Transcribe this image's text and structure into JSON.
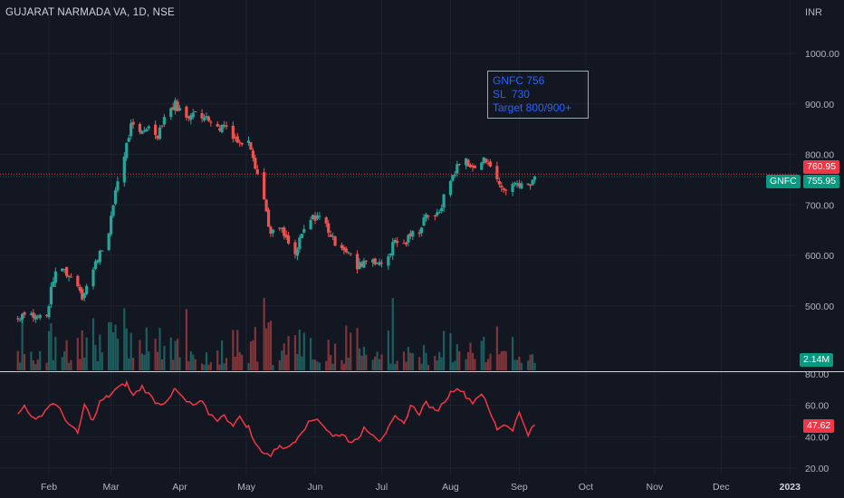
{
  "header": {
    "title": "GUJARAT NARMADA VA, 1D, NSE",
    "currency": "INR"
  },
  "note": {
    "lines": [
      "GNFC 756",
      "SL  730",
      "Target 800/900+"
    ]
  },
  "price_tags": {
    "last": "760.95",
    "current": "755.95",
    "symbol": "GNFC",
    "volume": "2.14M",
    "rsi": "47.62"
  },
  "colors": {
    "up": "#26a69a",
    "down": "#ef5350",
    "rsi": "#f23645",
    "note": "#2962ff",
    "bg": "#131722"
  },
  "chart_data": {
    "type": "candlestick",
    "title": "GUJARAT NARMADA VA, 1D, NSE",
    "price_axis": {
      "ticks": [
        "1000.00",
        "900.00",
        "800.00",
        "700.00",
        "600.00",
        "500.00"
      ],
      "ylim": [
        470,
        1050
      ]
    },
    "rsi_axis": {
      "ticks": [
        "80.00",
        "60.00",
        "40.00",
        "20.00"
      ],
      "ylim": [
        20,
        84
      ]
    },
    "x_ticks": [
      "Feb",
      "Mar",
      "Apr",
      "May",
      "Jun",
      "Jul",
      "Aug",
      "Sep",
      "Oct",
      "Nov",
      "Dec",
      "2023"
    ],
    "price_close_path": [
      [
        "2022-01-18",
        475
      ],
      [
        "2022-01-21",
        490
      ],
      [
        "2022-01-26",
        478
      ],
      [
        "2022-01-31",
        480
      ],
      [
        "2022-02-03",
        555
      ],
      [
        "2022-02-07",
        575
      ],
      [
        "2022-02-10",
        560
      ],
      [
        "2022-02-14",
        545
      ],
      [
        "2022-02-16",
        520
      ],
      [
        "2022-02-21",
        570
      ],
      [
        "2022-02-24",
        610
      ],
      [
        "2022-02-28",
        640
      ],
      [
        "2022-03-03",
        730
      ],
      [
        "2022-03-07",
        800
      ],
      [
        "2022-03-10",
        855
      ],
      [
        "2022-03-14",
        840
      ],
      [
        "2022-03-17",
        855
      ],
      [
        "2022-03-22",
        840
      ],
      [
        "2022-03-25",
        875
      ],
      [
        "2022-03-30",
        900
      ],
      [
        "2022-04-04",
        870
      ],
      [
        "2022-04-07",
        890
      ],
      [
        "2022-04-11",
        865
      ],
      [
        "2022-04-13",
        880
      ],
      [
        "2022-04-18",
        850
      ],
      [
        "2022-04-21",
        860
      ],
      [
        "2022-04-25",
        840
      ],
      [
        "2022-04-28",
        820
      ],
      [
        "2022-05-02",
        835
      ],
      [
        "2022-05-05",
        780
      ],
      [
        "2022-05-09",
        710
      ],
      [
        "2022-05-12",
        640
      ],
      [
        "2022-05-16",
        655
      ],
      [
        "2022-05-19",
        630
      ],
      [
        "2022-05-23",
        600
      ],
      [
        "2022-05-26",
        640
      ],
      [
        "2022-05-30",
        670
      ],
      [
        "2022-06-02",
        680
      ],
      [
        "2022-06-06",
        660
      ],
      [
        "2022-06-09",
        630
      ],
      [
        "2022-06-13",
        620
      ],
      [
        "2022-06-16",
        605
      ],
      [
        "2022-06-20",
        575
      ],
      [
        "2022-06-23",
        590
      ],
      [
        "2022-06-27",
        595
      ],
      [
        "2022-06-30",
        580
      ],
      [
        "2022-07-04",
        600
      ],
      [
        "2022-07-07",
        630
      ],
      [
        "2022-07-11",
        620
      ],
      [
        "2022-07-14",
        640
      ],
      [
        "2022-07-18",
        650
      ],
      [
        "2022-07-21",
        685
      ],
      [
        "2022-07-25",
        670
      ],
      [
        "2022-07-28",
        700
      ],
      [
        "2022-08-01",
        750
      ],
      [
        "2022-08-04",
        775
      ],
      [
        "2022-08-08",
        790
      ],
      [
        "2022-08-11",
        770
      ],
      [
        "2022-08-15",
        785
      ],
      [
        "2022-08-18",
        790
      ],
      [
        "2022-08-22",
        745
      ],
      [
        "2022-08-25",
        730
      ],
      [
        "2022-08-29",
        740
      ],
      [
        "2022-09-01",
        745
      ],
      [
        "2022-09-05",
        740
      ],
      [
        "2022-09-08",
        756
      ]
    ],
    "rsi_path": [
      [
        "2022-01-18",
        54
      ],
      [
        "2022-01-21",
        60
      ],
      [
        "2022-01-26",
        50
      ],
      [
        "2022-01-31",
        58
      ],
      [
        "2022-02-03",
        62
      ],
      [
        "2022-02-07",
        55
      ],
      [
        "2022-02-10",
        48
      ],
      [
        "2022-02-14",
        42
      ],
      [
        "2022-02-17",
        60
      ],
      [
        "2022-02-21",
        50
      ],
      [
        "2022-02-24",
        62
      ],
      [
        "2022-02-28",
        66
      ],
      [
        "2022-03-03",
        70
      ],
      [
        "2022-03-08",
        74
      ],
      [
        "2022-03-11",
        66
      ],
      [
        "2022-03-15",
        72
      ],
      [
        "2022-03-18",
        67
      ],
      [
        "2022-03-22",
        61
      ],
      [
        "2022-03-25",
        62
      ],
      [
        "2022-03-30",
        70
      ],
      [
        "2022-04-04",
        62
      ],
      [
        "2022-04-07",
        60
      ],
      [
        "2022-04-11",
        62
      ],
      [
        "2022-04-14",
        55
      ],
      [
        "2022-04-18",
        51
      ],
      [
        "2022-04-21",
        53
      ],
      [
        "2022-04-25",
        48
      ],
      [
        "2022-04-28",
        52
      ],
      [
        "2022-05-02",
        46
      ],
      [
        "2022-05-05",
        35
      ],
      [
        "2022-05-09",
        30
      ],
      [
        "2022-05-12",
        28
      ],
      [
        "2022-05-16",
        35
      ],
      [
        "2022-05-19",
        32
      ],
      [
        "2022-05-23",
        38
      ],
      [
        "2022-05-26",
        44
      ],
      [
        "2022-05-30",
        50
      ],
      [
        "2022-06-02",
        52
      ],
      [
        "2022-06-06",
        45
      ],
      [
        "2022-06-09",
        40
      ],
      [
        "2022-06-13",
        42
      ],
      [
        "2022-06-16",
        38
      ],
      [
        "2022-06-20",
        37
      ],
      [
        "2022-06-23",
        46
      ],
      [
        "2022-06-27",
        42
      ],
      [
        "2022-06-30",
        38
      ],
      [
        "2022-07-04",
        45
      ],
      [
        "2022-07-07",
        52
      ],
      [
        "2022-07-11",
        48
      ],
      [
        "2022-07-14",
        60
      ],
      [
        "2022-07-18",
        55
      ],
      [
        "2022-07-21",
        62
      ],
      [
        "2022-07-25",
        56
      ],
      [
        "2022-07-28",
        60
      ],
      [
        "2022-08-01",
        68
      ],
      [
        "2022-08-04",
        72
      ],
      [
        "2022-08-08",
        66
      ],
      [
        "2022-08-11",
        62
      ],
      [
        "2022-08-15",
        68
      ],
      [
        "2022-08-18",
        58
      ],
      [
        "2022-08-22",
        45
      ],
      [
        "2022-08-25",
        48
      ],
      [
        "2022-08-29",
        45
      ],
      [
        "2022-09-01",
        55
      ],
      [
        "2022-09-05",
        42
      ],
      [
        "2022-09-08",
        47.62
      ]
    ],
    "grid": true,
    "annotation": "GNFC 756 / SL 730 / Target 800/900+",
    "last_price": 760.95,
    "current_price": 755.95,
    "last_volume": "2.14M",
    "last_rsi": 47.62
  }
}
